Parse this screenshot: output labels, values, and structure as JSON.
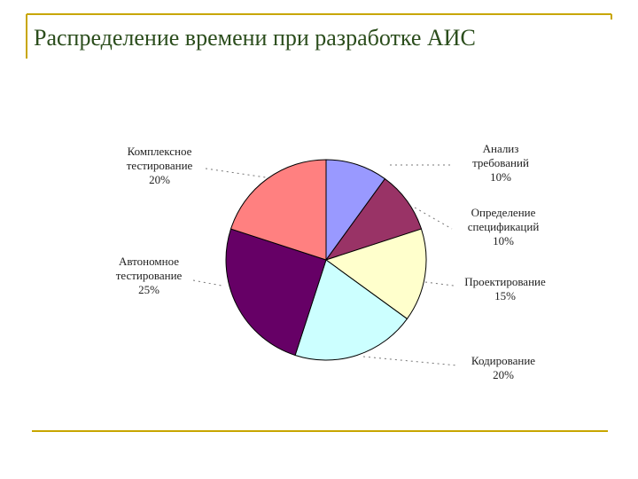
{
  "slide": {
    "title": "Распределение времени при разработке АИС",
    "accent_color": "#c8a600"
  },
  "chart_data": {
    "type": "pie",
    "title": "",
    "slices": [
      {
        "name": "Анализ требований",
        "label_lines": [
          "Анализ",
          "требований"
        ],
        "value": 10,
        "value_label": "10%",
        "color": "#9999ff"
      },
      {
        "name": "Определение спецификаций",
        "label_lines": [
          "Определение",
          "спецификаций"
        ],
        "value": 10,
        "value_label": "10%",
        "color": "#993366"
      },
      {
        "name": "Проектирование",
        "label_lines": [
          "Проектирование"
        ],
        "value": 15,
        "value_label": "15%",
        "color": "#ffffcc"
      },
      {
        "name": "Кодирование",
        "label_lines": [
          "Кодирование"
        ],
        "value": 20,
        "value_label": "20%",
        "color": "#ccffff"
      },
      {
        "name": "Автономное тестирование",
        "label_lines": [
          "Автономное",
          "тестирование"
        ],
        "value": 25,
        "value_label": "25%",
        "color": "#660066"
      },
      {
        "name": "Комплексное тестирование",
        "label_lines": [
          "Комплексное",
          "тестирование"
        ],
        "value": 20,
        "value_label": "20%",
        "color": "#ff8080"
      }
    ]
  }
}
